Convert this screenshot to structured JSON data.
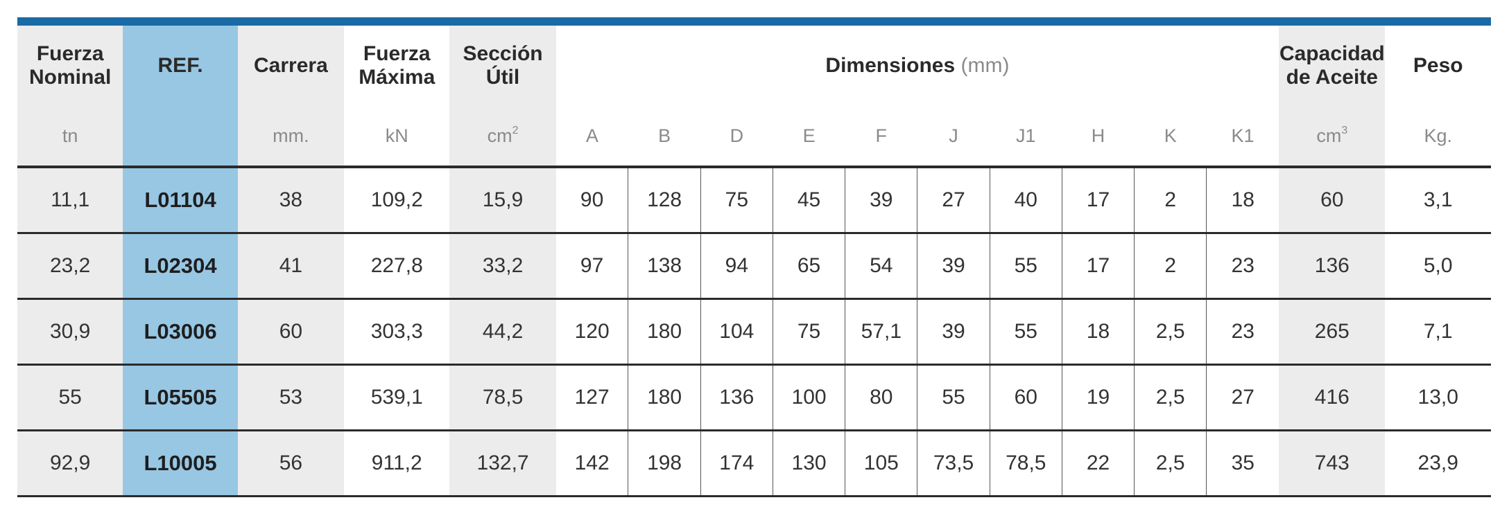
{
  "headers": {
    "fuerza_nominal": {
      "line1": "Fuerza",
      "line2": "Nominal",
      "unit": "tn"
    },
    "ref": {
      "line1": "REF."
    },
    "carrera": {
      "line1": "Carrera",
      "unit": "mm."
    },
    "fuerza_maxima": {
      "line1": "Fuerza",
      "line2": "Máxima",
      "unit": "kN"
    },
    "seccion_util": {
      "line1": "Sección",
      "line2": "Útil",
      "unit": "cm",
      "unit_sup": "2"
    },
    "dimensiones": {
      "label": "Dimensiones",
      "unit": "(mm)"
    },
    "dims": [
      "A",
      "B",
      "D",
      "E",
      "F",
      "J",
      "J1",
      "H",
      "K",
      "K1"
    ],
    "capacidad": {
      "line1": "Capacidad",
      "line2": "de Aceite",
      "unit": "cm",
      "unit_sup": "3"
    },
    "peso": {
      "line1": "Peso",
      "unit": "Kg."
    }
  },
  "rows": [
    {
      "fuerza_nominal": "11,1",
      "ref": "L01104",
      "carrera": "38",
      "fuerza_maxima": "109,2",
      "seccion": "15,9",
      "dims": [
        "90",
        "128",
        "75",
        "45",
        "39",
        "27",
        "40",
        "17",
        "2",
        "18"
      ],
      "capacidad": "60",
      "peso": "3,1"
    },
    {
      "fuerza_nominal": "23,2",
      "ref": "L02304",
      "carrera": "41",
      "fuerza_maxima": "227,8",
      "seccion": "33,2",
      "dims": [
        "97",
        "138",
        "94",
        "65",
        "54",
        "39",
        "55",
        "17",
        "2",
        "23"
      ],
      "capacidad": "136",
      "peso": "5,0"
    },
    {
      "fuerza_nominal": "30,9",
      "ref": "L03006",
      "carrera": "60",
      "fuerza_maxima": "303,3",
      "seccion": "44,2",
      "dims": [
        "120",
        "180",
        "104",
        "75",
        "57,1",
        "39",
        "55",
        "18",
        "2,5",
        "23"
      ],
      "capacidad": "265",
      "peso": "7,1"
    },
    {
      "fuerza_nominal": "55",
      "ref": "L05505",
      "carrera": "53",
      "fuerza_maxima": "539,1",
      "seccion": "78,5",
      "dims": [
        "127",
        "180",
        "136",
        "100",
        "80",
        "55",
        "60",
        "19",
        "2,5",
        "27"
      ],
      "capacidad": "416",
      "peso": "13,0"
    },
    {
      "fuerza_nominal": "92,9",
      "ref": "L10005",
      "carrera": "56",
      "fuerza_maxima": "911,2",
      "seccion": "132,7",
      "dims": [
        "142",
        "198",
        "174",
        "130",
        "105",
        "73,5",
        "78,5",
        "22",
        "2,5",
        "35"
      ],
      "capacidad": "743",
      "peso": "23,9"
    }
  ],
  "colors": {
    "accent_bar": "#1a6aa6",
    "ref_column": "#98c7e4",
    "shaded_column": "#ececec"
  }
}
